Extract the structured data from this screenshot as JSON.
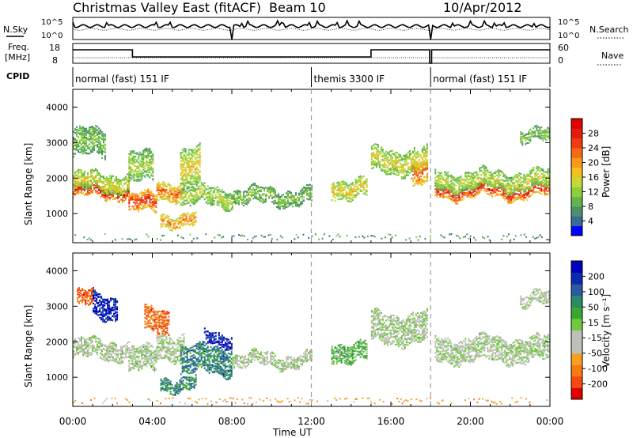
{
  "header": {
    "title": "Christmas Valley East (fitACF)",
    "beam": "Beam 10",
    "date": "10/Apr/2012"
  },
  "top_panels": {
    "nsky_label": "N.Sky",
    "nsearch_label": "N.Search",
    "freq_label_1": "Freq.",
    "freq_label_2": "[MHz]",
    "nave_label": "Nave",
    "cpid_label": "CPID",
    "noise_tick_top": "10^5",
    "noise_tick_bottom": "10^0",
    "freq_ticks": [
      "18",
      "8"
    ],
    "nave_ticks": [
      "60",
      "0"
    ]
  },
  "cpid_segments": [
    {
      "start_h": 0,
      "end_h": 12,
      "label": "normal (fast) 151 IF"
    },
    {
      "start_h": 12,
      "end_h": 18,
      "label": "themis 3300 IF"
    },
    {
      "start_h": 18,
      "end_h": 24,
      "label": "normal (fast) 151 IF"
    }
  ],
  "chart_data": [
    {
      "type": "heatmap",
      "panel": "power",
      "ylabel": "Slant Range [km]",
      "yticks": [
        1000,
        2000,
        3000,
        4000
      ],
      "ylim": [
        180,
        4500
      ],
      "xlabel": "Time UT",
      "xlim_hours": [
        0,
        24
      ],
      "xticks": [
        "00:00",
        "04:00",
        "08:00",
        "12:00",
        "16:00",
        "20:00",
        "00:00"
      ],
      "colorbar": {
        "label": "Power [dB]",
        "ticks": [
          "28",
          "24",
          "20",
          "16",
          "12",
          "8",
          "4"
        ],
        "colors": [
          "#0000ff",
          "#3a6a9a",
          "#4d8f6e",
          "#62b34f",
          "#8ccf3a",
          "#c8d63a",
          "#f0c020",
          "#f79a1a",
          "#f56a14",
          "#ee3a10",
          "#e41a10",
          "#e00000"
        ]
      },
      "bands": [
        {
          "t0": 0.0,
          "t1": 2.8,
          "r": 1650,
          "w": 160,
          "v": 0.95
        },
        {
          "t0": 0.0,
          "t1": 2.8,
          "r": 1900,
          "w": 250,
          "v": 0.5
        },
        {
          "t0": 0.0,
          "t1": 1.6,
          "r": 3000,
          "w": 350,
          "v": 0.35
        },
        {
          "t0": 2.8,
          "t1": 4.2,
          "r": 1300,
          "w": 220,
          "v": 0.9
        },
        {
          "t0": 4.2,
          "t1": 5.6,
          "r": 1700,
          "w": 250,
          "v": 0.75
        },
        {
          "t0": 2.8,
          "t1": 4.0,
          "r": 2300,
          "w": 400,
          "v": 0.4
        },
        {
          "t0": 4.4,
          "t1": 6.2,
          "r": 850,
          "w": 150,
          "v": 0.7
        },
        {
          "t0": 5.4,
          "t1": 6.4,
          "r": 2300,
          "w": 500,
          "v": 0.55
        },
        {
          "t0": 5.4,
          "t1": 8.0,
          "r": 1500,
          "w": 250,
          "v": 0.45
        },
        {
          "t0": 8.0,
          "t1": 12.0,
          "r": 1500,
          "w": 180,
          "v": 0.35
        },
        {
          "t0": 13.0,
          "t1": 14.8,
          "r": 1750,
          "w": 250,
          "v": 0.55
        },
        {
          "t0": 15.0,
          "t1": 17.8,
          "r": 2500,
          "w": 300,
          "v": 0.5
        },
        {
          "t0": 17.0,
          "t1": 17.8,
          "r": 2100,
          "w": 300,
          "v": 0.8
        },
        {
          "t0": 18.2,
          "t1": 24.0,
          "r": 1650,
          "w": 170,
          "v": 0.9
        },
        {
          "t0": 18.2,
          "t1": 24.0,
          "r": 1950,
          "w": 250,
          "v": 0.45
        },
        {
          "t0": 22.5,
          "t1": 24.0,
          "r": 3200,
          "w": 150,
          "v": 0.35
        }
      ]
    },
    {
      "type": "heatmap",
      "panel": "velocity",
      "ylabel": "Slant Range [km]",
      "yticks": [
        1000,
        2000,
        3000,
        4000
      ],
      "ylim": [
        180,
        4500
      ],
      "xlabel": "Time UT",
      "xlim_hours": [
        0,
        24
      ],
      "xticks": [
        "00:00",
        "04:00",
        "08:00",
        "12:00",
        "16:00",
        "20:00",
        "00:00"
      ],
      "colorbar": {
        "label": "Velocity [m s⁻¹]",
        "ticks": [
          "200",
          "100",
          "50",
          "15",
          "-15",
          "-50",
          "-100",
          "-200"
        ],
        "colors": [
          "#e00000",
          "#f24a10",
          "#f57a14",
          "#f7a020",
          "#c0c0b8",
          "#c0c0b8",
          "#70c840",
          "#3aa830",
          "#2a8a6a",
          "#2a5aa0",
          "#0a2ab0",
          "#0000c0"
        ]
      },
      "bands": [
        {
          "t0": 0.0,
          "t1": 2.8,
          "r": 1800,
          "w": 250,
          "v": 0.45
        },
        {
          "t0": 0.2,
          "t1": 1.0,
          "r": 3200,
          "w": 180,
          "v": 0.15
        },
        {
          "t0": 1.0,
          "t1": 2.2,
          "r": 3000,
          "w": 300,
          "v": 0.95
        },
        {
          "t0": 2.8,
          "t1": 4.2,
          "r": 1500,
          "w": 300,
          "v": 0.48
        },
        {
          "t0": 3.6,
          "t1": 4.8,
          "r": 2600,
          "w": 300,
          "v": 0.15
        },
        {
          "t0": 4.2,
          "t1": 5.6,
          "r": 1900,
          "w": 300,
          "v": 0.46
        },
        {
          "t0": 4.4,
          "t1": 6.2,
          "r": 850,
          "w": 150,
          "v": 0.72
        },
        {
          "t0": 5.4,
          "t1": 8.0,
          "r": 1500,
          "w": 350,
          "v": 0.75
        },
        {
          "t0": 6.6,
          "t1": 8.0,
          "r": 2100,
          "w": 150,
          "v": 0.95
        },
        {
          "t0": 8.0,
          "t1": 12.0,
          "r": 1500,
          "w": 150,
          "v": 0.46
        },
        {
          "t0": 13.0,
          "t1": 14.8,
          "r": 1750,
          "w": 250,
          "v": 0.6
        },
        {
          "t0": 15.0,
          "t1": 17.8,
          "r": 2400,
          "w": 400,
          "v": 0.47
        },
        {
          "t0": 18.2,
          "t1": 24.0,
          "r": 1800,
          "w": 300,
          "v": 0.47
        },
        {
          "t0": 22.5,
          "t1": 24.0,
          "r": 3200,
          "w": 150,
          "v": 0.45
        }
      ]
    }
  ]
}
